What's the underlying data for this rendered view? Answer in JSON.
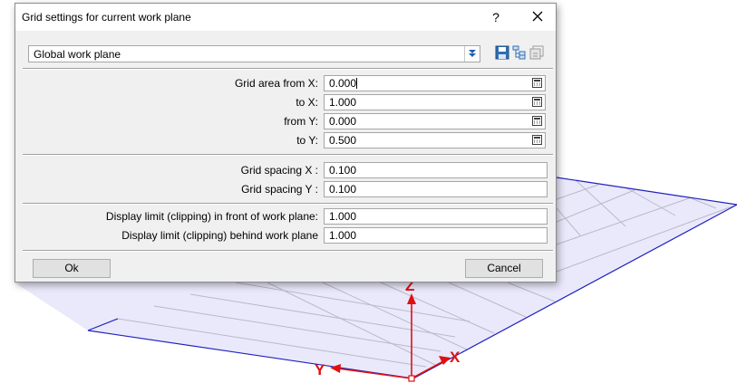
{
  "dialog": {
    "title": "Grid settings for current work plane",
    "help_label": "?",
    "work_plane": "Global work plane"
  },
  "grid_area": [
    {
      "label": "Grid area from X:",
      "value": "0.000",
      "focused": true
    },
    {
      "label": "to X:",
      "value": "1.000"
    },
    {
      "label": "from Y:",
      "value": "0.000"
    },
    {
      "label": "to Y:",
      "value": "0.500"
    }
  ],
  "grid_spacing": [
    {
      "label": "Grid spacing X :",
      "value": "0.100"
    },
    {
      "label": "Grid spacing Y :",
      "value": "0.100"
    }
  ],
  "display_limit": [
    {
      "label": "Display limit (clipping) in front of work plane:",
      "value": "1.000"
    },
    {
      "label": "Display limit (clipping) behind work plane",
      "value": "1.000"
    }
  ],
  "buttons": {
    "ok": "Ok",
    "cancel": "Cancel"
  },
  "axes": {
    "x": "X",
    "y": "Y",
    "z": "Z"
  },
  "colors": {
    "grid_fill": "#e8e8fb",
    "grid_border": "#2020c0",
    "axis": "#e01010"
  },
  "icons": [
    "combo-dropdown-icon",
    "save-icon",
    "tree-icon",
    "import-icon",
    "calculator-icon",
    "close-icon"
  ]
}
